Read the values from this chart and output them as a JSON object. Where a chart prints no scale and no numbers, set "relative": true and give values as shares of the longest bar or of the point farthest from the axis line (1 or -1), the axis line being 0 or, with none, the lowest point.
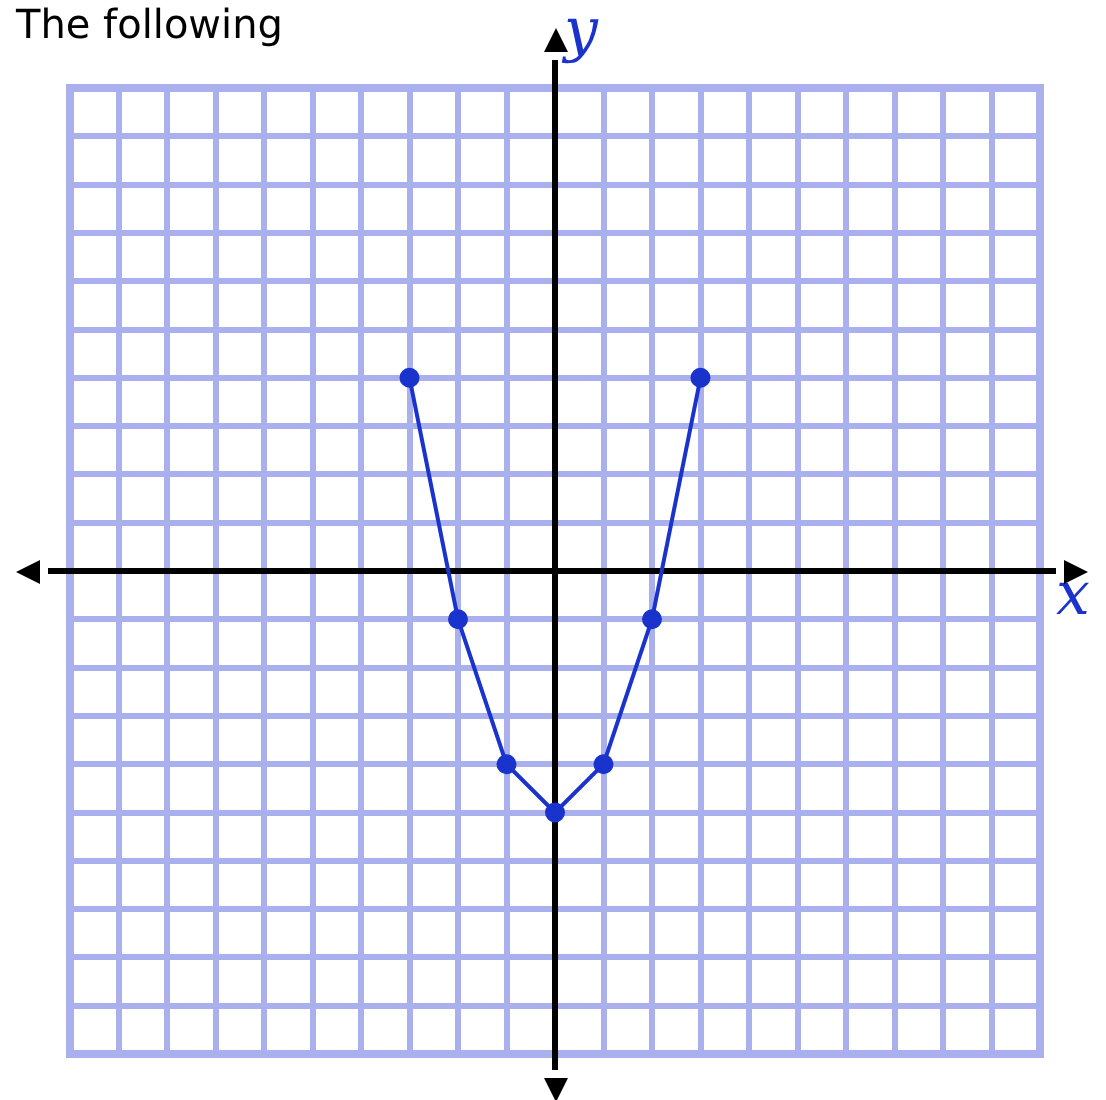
{
  "chart_data": {
    "type": "line",
    "relative": true,
    "annotations": [
      "The following",
      "x",
      "y"
    ],
    "categories": [
      null,
      null,
      null,
      null,
      null,
      null,
      null
    ],
    "series": [
      {
        "color": "#1a33cc",
        "values": [
          0.8,
          -0.2,
          -0.8,
          -1,
          -0.8,
          -0.2,
          0.8
        ]
      }
    ],
    "grid": true,
    "marker": "circle",
    "line_style": "solid"
  }
}
